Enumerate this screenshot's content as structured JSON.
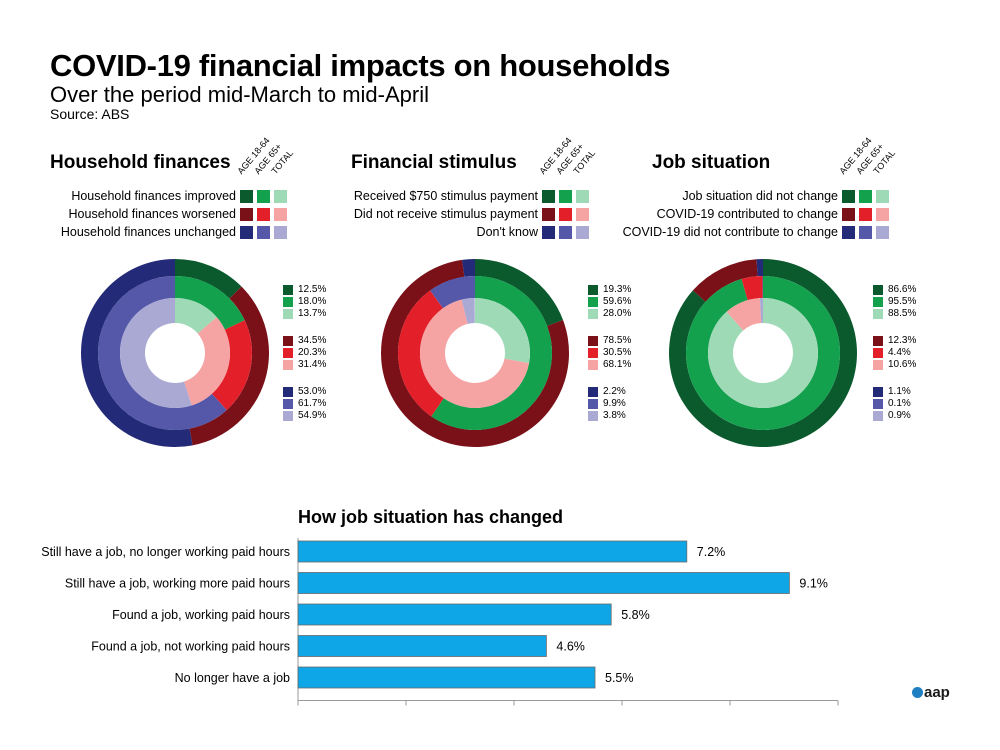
{
  "header": {
    "title": "COVID-19 financial impacts on households",
    "subtitle": "Over the period mid-March to mid-April",
    "source": "Source: ABS"
  },
  "column_headers": [
    "AGE 18-64",
    "AGE 65+",
    "TOTAL"
  ],
  "colors": {
    "green": [
      "#0b5a2e",
      "#14a14e",
      "#9fdab7"
    ],
    "red": [
      "#7a1018",
      "#e3202a",
      "#f5a3a3"
    ],
    "blue": [
      "#232a78",
      "#5557a8",
      "#a9a9d4"
    ],
    "bar": "#0fa6e7"
  },
  "chart_data": [
    {
      "type": "pie",
      "title": "Household finances",
      "rings": [
        "AGE 18-64",
        "AGE 65+",
        "TOTAL"
      ],
      "categories": [
        "Household finances improved",
        "Household finances worsened",
        "Household finances unchanged"
      ],
      "series": [
        {
          "name": "Household finances improved",
          "values": [
            12.5,
            18.0,
            13.7
          ],
          "labels": [
            "12.5%",
            "18.0%",
            "13.7%"
          ]
        },
        {
          "name": "Household finances worsened",
          "values": [
            34.5,
            20.3,
            31.4
          ],
          "labels": [
            "34.5%",
            "20.3%",
            "31.4%"
          ]
        },
        {
          "name": "Household finances unchanged",
          "values": [
            53.0,
            61.7,
            54.9
          ],
          "labels": [
            "53.0%",
            "61.7%",
            "54.9%"
          ]
        }
      ]
    },
    {
      "type": "pie",
      "title": "Financial stimulus",
      "rings": [
        "AGE 18-64",
        "AGE 65+",
        "TOTAL"
      ],
      "categories": [
        "Received $750 stimulus payment",
        "Did not receive stimulus payment",
        "Don't know"
      ],
      "series": [
        {
          "name": "Received $750 stimulus payment",
          "values": [
            19.3,
            59.6,
            28.0
          ],
          "labels": [
            "19.3%",
            "59.6%",
            "28.0%"
          ]
        },
        {
          "name": "Did not receive stimulus payment",
          "values": [
            78.5,
            30.5,
            68.1
          ],
          "labels": [
            "78.5%",
            "30.5%",
            "68.1%"
          ]
        },
        {
          "name": "Don't know",
          "values": [
            2.2,
            9.9,
            3.8
          ],
          "labels": [
            "2.2%",
            "9.9%",
            "3.8%"
          ]
        }
      ]
    },
    {
      "type": "pie",
      "title": "Job situation",
      "rings": [
        "AGE 18-64",
        "AGE 65+",
        "TOTAL"
      ],
      "categories": [
        "Job situation did not change",
        "COVID-19 contributed to change",
        "COVID-19 did not contribute to change"
      ],
      "series": [
        {
          "name": "Job situation did not change",
          "values": [
            86.6,
            95.5,
            88.5
          ],
          "labels": [
            "86.6%",
            "95.5%",
            "88.5%"
          ]
        },
        {
          "name": "COVID-19 contributed to change",
          "values": [
            12.3,
            4.4,
            10.6
          ],
          "labels": [
            "12.3%",
            "4.4%",
            "10.6%"
          ]
        },
        {
          "name": "COVID-19 did not contribute to change",
          "values": [
            1.1,
            0.1,
            0.9
          ],
          "labels": [
            "1.1%",
            "0.1%",
            "0.9%"
          ]
        }
      ]
    },
    {
      "type": "bar",
      "orientation": "horizontal",
      "title": "How job situation has changed",
      "categories": [
        "Still have a job, no longer working paid hours",
        "Still have a job, working more paid hours",
        "Found a job, working paid hours",
        "Found a job, not working paid hours",
        "No longer have a job"
      ],
      "values": [
        7.2,
        9.1,
        5.8,
        4.6,
        5.5
      ],
      "labels": [
        "7.2%",
        "9.1%",
        "5.8%",
        "4.6%",
        "5.5%"
      ],
      "xlim": [
        0,
        10
      ]
    }
  ],
  "logo": "aap"
}
